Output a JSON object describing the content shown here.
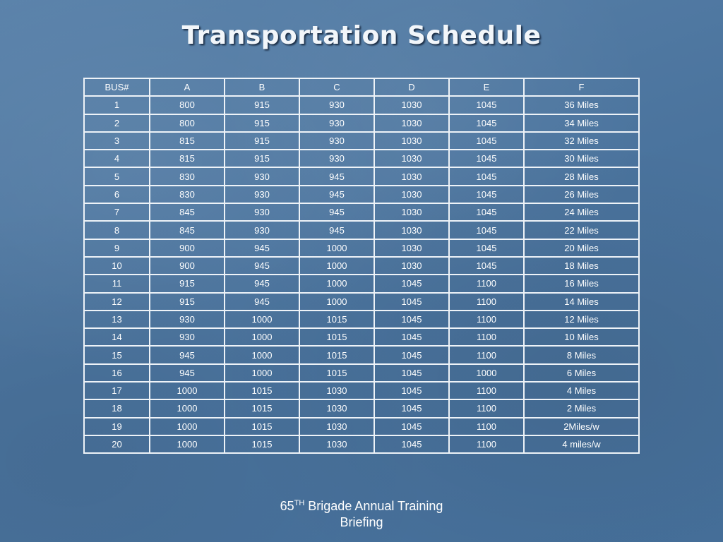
{
  "title": "Transportation Schedule",
  "table": {
    "headers": [
      "BUS#",
      "A",
      "B",
      "C",
      "D",
      "E",
      "F"
    ],
    "rows": [
      [
        "1",
        "800",
        "915",
        "930",
        "1030",
        "1045",
        "36 Miles"
      ],
      [
        "2",
        "800",
        "915",
        "930",
        "1030",
        "1045",
        "34 Miles"
      ],
      [
        "3",
        "815",
        "915",
        "930",
        "1030",
        "1045",
        "32 Miles"
      ],
      [
        "4",
        "815",
        "915",
        "930",
        "1030",
        "1045",
        "30 Miles"
      ],
      [
        "5",
        "830",
        "930",
        "945",
        "1030",
        "1045",
        "28 Miles"
      ],
      [
        "6",
        "830",
        "930",
        "945",
        "1030",
        "1045",
        "26 Miles"
      ],
      [
        "7",
        "845",
        "930",
        "945",
        "1030",
        "1045",
        "24 Miles"
      ],
      [
        "8",
        "845",
        "930",
        "945",
        "1030",
        "1045",
        "22 Miles"
      ],
      [
        "9",
        "900",
        "945",
        "1000",
        "1030",
        "1045",
        "20 Miles"
      ],
      [
        "10",
        "900",
        "945",
        "1000",
        "1030",
        "1045",
        "18 Miles"
      ],
      [
        "11",
        "915",
        "945",
        "1000",
        "1045",
        "1100",
        "16 Miles"
      ],
      [
        "12",
        "915",
        "945",
        "1000",
        "1045",
        "1100",
        "14 Miles"
      ],
      [
        "13",
        "930",
        "1000",
        "1015",
        "1045",
        "1100",
        "12 Miles"
      ],
      [
        "14",
        "930",
        "1000",
        "1015",
        "1045",
        "1100",
        "10 Miles"
      ],
      [
        "15",
        "945",
        "1000",
        "1015",
        "1045",
        "1100",
        "8 Miles"
      ],
      [
        "16",
        "945",
        "1000",
        "1015",
        "1045",
        "1000",
        "6 Miles"
      ],
      [
        "17",
        "1000",
        "1015",
        "1030",
        "1045",
        "1100",
        "4 Miles"
      ],
      [
        "18",
        "1000",
        "1015",
        "1030",
        "1045",
        "1100",
        "2 Miles"
      ],
      [
        "19",
        "1000",
        "1015",
        "1030",
        "1045",
        "1100",
        "2Miles/w"
      ],
      [
        "20",
        "1000",
        "1015",
        "1030",
        "1045",
        "1100",
        "4 miles/w"
      ]
    ]
  },
  "footer": {
    "number": "65",
    "superscript": "TH",
    "line1_rest": " Brigade Annual Training",
    "line2": "Briefing"
  }
}
